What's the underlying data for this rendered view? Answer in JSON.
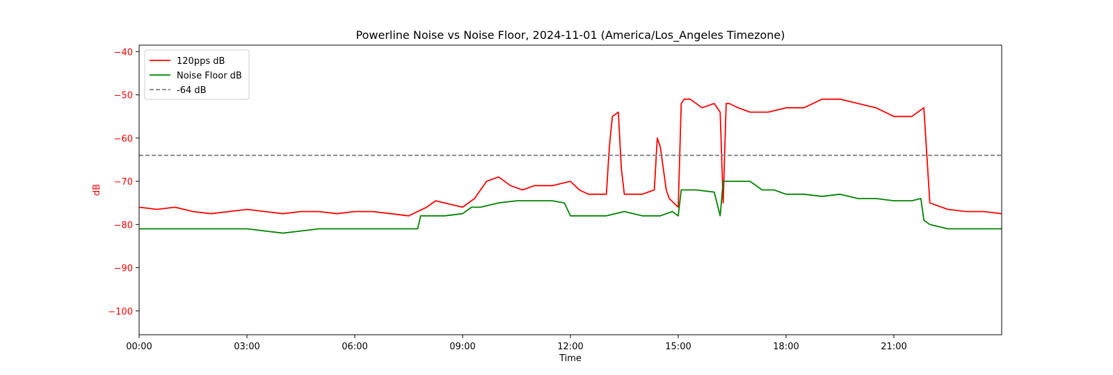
{
  "chart_data": {
    "type": "line",
    "title": "Powerline Noise vs Noise Floor, 2024-11-01 (America/Los_Angeles Timezone)",
    "xlabel": "Time",
    "ylabel": "dB",
    "xlim": [
      "00:00",
      "24:00"
    ],
    "ylim": [
      -105.5,
      -38.5
    ],
    "x_ticks": [
      "00:00",
      "03:00",
      "06:00",
      "09:00",
      "12:00",
      "15:00",
      "18:00",
      "21:00"
    ],
    "y_ticks": [
      -40,
      -50,
      -60,
      -70,
      -80,
      -90,
      -100
    ],
    "y_tick_labels": [
      "−40",
      "−50",
      "−60",
      "−70",
      "−80",
      "−90",
      "−100"
    ],
    "ylabel_color": "#ff0000",
    "grid": false,
    "legend_position": "upper-left",
    "series": [
      {
        "name": "120pps dB",
        "color": "#ff0000",
        "style": "solid",
        "x": [
          "00:00",
          "00:30",
          "01:00",
          "01:30",
          "02:00",
          "02:30",
          "03:00",
          "03:30",
          "04:00",
          "04:30",
          "05:00",
          "05:30",
          "06:00",
          "06:30",
          "07:00",
          "07:30",
          "07:45",
          "08:00",
          "08:15",
          "08:30",
          "09:00",
          "09:20",
          "09:40",
          "10:00",
          "10:20",
          "10:40",
          "11:00",
          "11:30",
          "12:00",
          "12:15",
          "12:30",
          "13:00",
          "13:05",
          "13:10",
          "13:20",
          "13:25",
          "13:30",
          "14:00",
          "14:20",
          "14:25",
          "14:30",
          "14:40",
          "14:45",
          "15:00",
          "15:05",
          "15:10",
          "15:20",
          "15:40",
          "16:00",
          "16:10",
          "16:15",
          "16:20",
          "16:25",
          "16:40",
          "17:00",
          "17:30",
          "18:00",
          "18:30",
          "19:00",
          "19:30",
          "20:00",
          "20:30",
          "21:00",
          "21:30",
          "21:50",
          "21:55",
          "22:00",
          "22:30",
          "23:00",
          "23:30",
          "24:00"
        ],
        "values": [
          -76,
          -76.5,
          -76,
          -77,
          -77.5,
          -77,
          -76.5,
          -77,
          -77.5,
          -77,
          -77,
          -77.5,
          -77,
          -77,
          -77.5,
          -78,
          -77,
          -76,
          -74.5,
          -75,
          -76,
          -74,
          -70,
          -69,
          -71,
          -72,
          -71,
          -71,
          -70,
          -72,
          -73,
          -73,
          -62,
          -55,
          -54,
          -67,
          -73,
          -73,
          -72,
          -60,
          -62,
          -72,
          -74,
          -76,
          -52,
          -51,
          -51,
          -53,
          -52,
          -54,
          -75,
          -52,
          -52,
          -53,
          -54,
          -54,
          -53,
          -53,
          -51,
          -51,
          -52,
          -53,
          -55,
          -55,
          -53,
          -64,
          -75,
          -76.5,
          -77,
          -77,
          -77.5
        ]
      },
      {
        "name": "Noise Floor dB",
        "color": "#008000",
        "style": "solid",
        "x": [
          "00:00",
          "00:30",
          "01:00",
          "01:30",
          "02:00",
          "02:30",
          "03:00",
          "03:30",
          "04:00",
          "04:30",
          "05:00",
          "05:30",
          "06:00",
          "06:30",
          "07:00",
          "07:30",
          "07:45",
          "07:50",
          "08:00",
          "08:30",
          "09:00",
          "09:15",
          "09:30",
          "10:00",
          "10:30",
          "11:00",
          "11:30",
          "11:50",
          "12:00",
          "12:30",
          "13:00",
          "13:30",
          "14:00",
          "14:30",
          "14:50",
          "15:00",
          "15:05",
          "15:10",
          "15:30",
          "16:00",
          "16:10",
          "16:15",
          "16:25",
          "16:40",
          "17:00",
          "17:20",
          "17:40",
          "18:00",
          "18:30",
          "19:00",
          "19:30",
          "20:00",
          "20:30",
          "21:00",
          "21:30",
          "21:45",
          "21:50",
          "22:00",
          "22:30",
          "23:00",
          "23:30",
          "24:00"
        ],
        "values": [
          -81,
          -81,
          -81,
          -81,
          -81,
          -81,
          -81,
          -81.5,
          -82,
          -81.5,
          -81,
          -81,
          -81,
          -81,
          -81,
          -81,
          -81,
          -78,
          -78,
          -78,
          -77.5,
          -76,
          -76,
          -75,
          -74.5,
          -74.5,
          -74.5,
          -75,
          -78,
          -78,
          -78,
          -77,
          -78,
          -78,
          -77,
          -78,
          -72,
          -72,
          -72,
          -72.5,
          -78,
          -70,
          -70,
          -70,
          -70,
          -72,
          -72,
          -73,
          -73,
          -73.5,
          -73,
          -74,
          -74,
          -74.5,
          -74.5,
          -74,
          -79,
          -80,
          -81,
          -81,
          -81,
          -81
        ]
      },
      {
        "name": "-64 dB",
        "color": "#808080",
        "style": "dashed",
        "x": [
          "00:00",
          "24:00"
        ],
        "values": [
          -64,
          -64
        ]
      }
    ]
  }
}
